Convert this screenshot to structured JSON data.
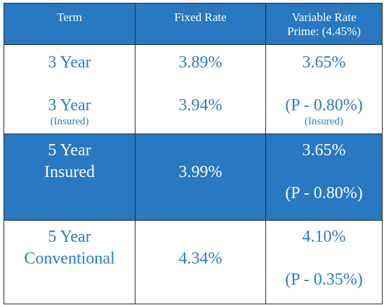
{
  "header": {
    "term": "Term",
    "fixed": "Fixed Rate",
    "variable_line1": "Variable Rate",
    "variable_line2": "Prime: (4.45%)"
  },
  "rows": [
    {
      "term_a": "3 Year",
      "fixed_a": "3.89%",
      "var_a": "3.65%",
      "term_b": "3 Year",
      "term_b_note": "(Insured)",
      "fixed_b": "3.94%",
      "var_b": "(P - 0.80%)",
      "var_b_note": "(Insured)"
    },
    {
      "term_line1": "5 Year",
      "term_line2": "Insured",
      "fixed": "3.99%",
      "var_rate": "3.65%",
      "var_prime": "(P - 0.80%)"
    },
    {
      "term_line1": "5 Year",
      "term_line2": "Conventional",
      "fixed": "4.34%",
      "var_rate": "4.10%",
      "var_prime": "(P - 0.35%)"
    }
  ],
  "colors": {
    "header_bg": "#2878c2",
    "text_blue": "#2a7dc6",
    "border": "#2a2a2a"
  }
}
